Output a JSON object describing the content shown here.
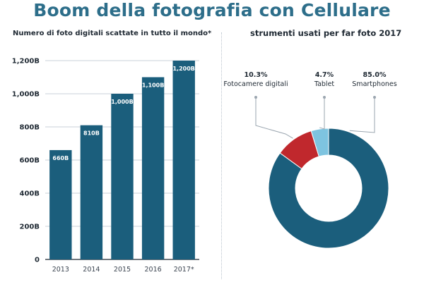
{
  "title": "Boom della fotografia con Cellulare",
  "chart_data": [
    {
      "type": "bar",
      "title": "Numero di foto digitali scattate in tutto il mondo*",
      "categories": [
        "2013",
        "2014",
        "2015",
        "2016",
        "2017*"
      ],
      "values": [
        660,
        810,
        1000,
        1100,
        1200
      ],
      "value_labels": [
        "660B",
        "810B",
        "1,000B",
        "1,100B",
        "1,200B"
      ],
      "y_tick_values": [
        0,
        200,
        400,
        600,
        800,
        1000,
        1200
      ],
      "y_tick_labels": [
        "0",
        "200B",
        "400B",
        "600B",
        "800B",
        "1,000B",
        "1,200B"
      ],
      "ylim": [
        0,
        1200
      ],
      "grid": true,
      "colors": {
        "bar": "#1b5e7c",
        "grid": "#c9d1d8",
        "axis": "#1f2933"
      }
    },
    {
      "type": "pie",
      "title": "strumenti usati per far foto 2017",
      "slices": [
        {
          "label": "Smartphones",
          "value": 85.0,
          "pct_label": "85.0%",
          "color": "#1b5e7c"
        },
        {
          "label": "Fotocamere digitali",
          "value": 10.3,
          "pct_label": "10.3%",
          "color": "#c0282d"
        },
        {
          "label": "Tablet",
          "value": 4.7,
          "pct_label": "4.7%",
          "color": "#7ec4e0"
        }
      ],
      "donut": true,
      "label_placement": "top, with leader lines",
      "colors": {
        "leader": "#9aa5af"
      }
    }
  ]
}
